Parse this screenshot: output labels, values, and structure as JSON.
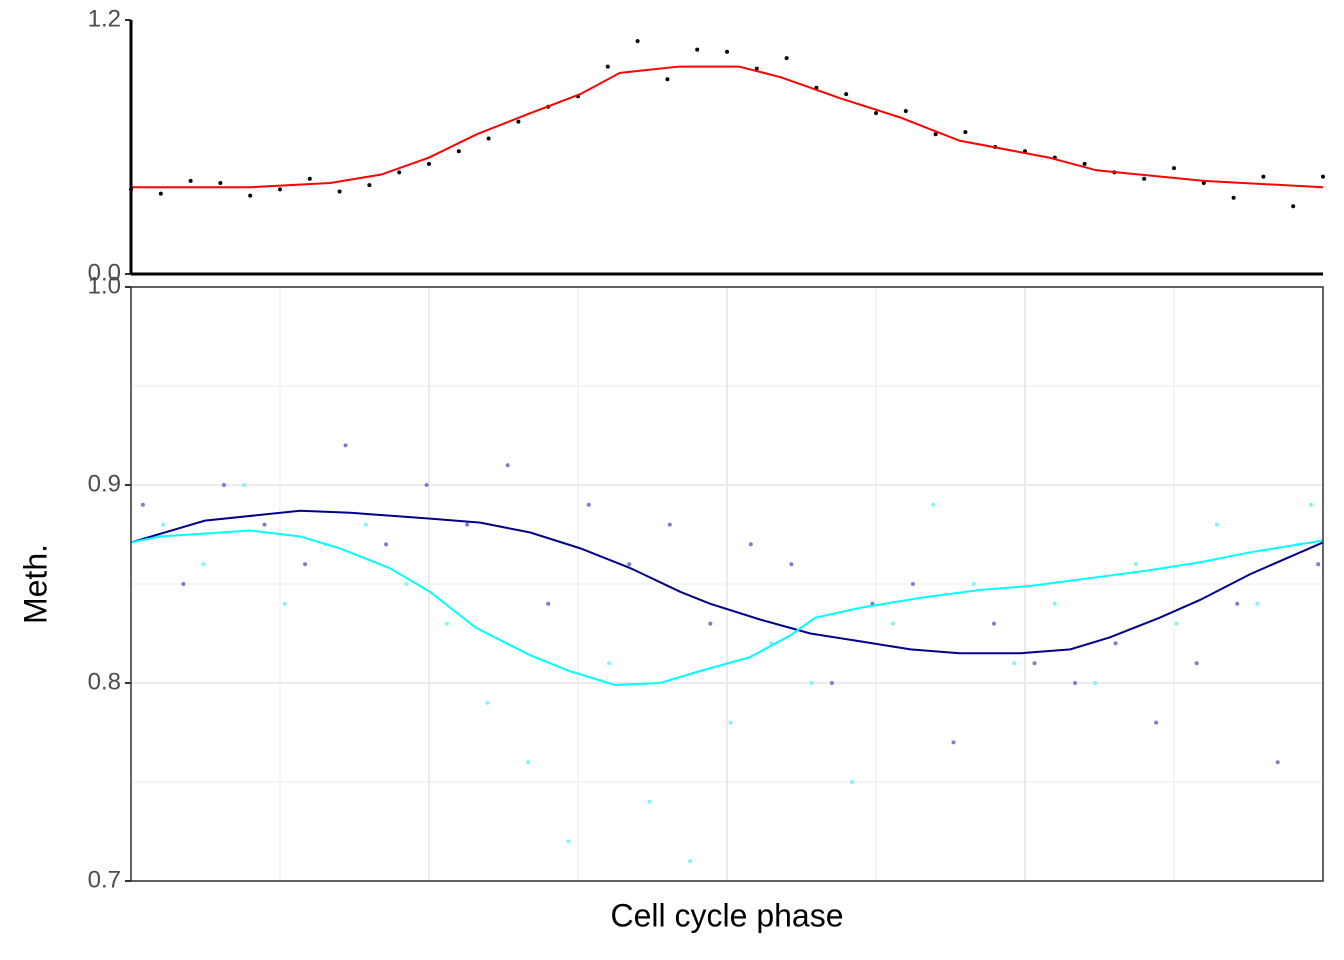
{
  "chart_data": [
    {
      "type": "scatter",
      "xlim": [
        0,
        1
      ],
      "ylim": [
        0,
        1.2
      ],
      "yticks": [
        {
          "value": 0,
          "label": "0.0"
        },
        1.2
      ],
      "grid": false,
      "frame": "axes",
      "series": [
        {
          "color": "#000000",
          "line": false,
          "x": [
            0,
            0.025,
            0.05,
            0.075,
            0.1,
            0.125,
            0.15,
            0.175,
            0.2,
            0.225,
            0.25,
            0.275,
            0.3,
            0.325,
            0.35,
            0.375,
            0.4,
            0.425,
            0.45,
            0.475,
            0.5,
            0.525,
            0.55,
            0.575,
            0.6,
            0.625,
            0.65,
            0.675,
            0.7,
            0.725,
            0.75,
            0.775,
            0.8,
            0.825,
            0.85,
            0.875,
            0.9,
            0.925,
            0.95,
            0.975,
            1
          ],
          "values": [
            0.4,
            0.38,
            0.44,
            0.43,
            0.37,
            0.4,
            0.45,
            0.39,
            0.42,
            0.48,
            0.52,
            0.58,
            0.64,
            0.72,
            0.79,
            0.84,
            0.98,
            1.1,
            0.92,
            1.06,
            1.05,
            0.97,
            1.02,
            0.88,
            0.85,
            0.76,
            0.77,
            0.66,
            0.67,
            0.6,
            0.58,
            0.55,
            0.52,
            0.48,
            0.45,
            0.5,
            0.43,
            0.36,
            0.46,
            0.32,
            0.46
          ]
        },
        {
          "color": "#ff0000",
          "line": true,
          "x": [
            0,
            0.1,
            0.167,
            0.21,
            0.25,
            0.29,
            0.335,
            0.377,
            0.41,
            0.46,
            0.51,
            0.545,
            0.595,
            0.645,
            0.695,
            0.77,
            0.81,
            0.9,
            1
          ],
          "values": [
            0.41,
            0.41,
            0.43,
            0.47,
            0.55,
            0.66,
            0.76,
            0.85,
            0.95,
            0.98,
            0.98,
            0.93,
            0.83,
            0.74,
            0.63,
            0.55,
            0.49,
            0.44,
            0.41
          ]
        }
      ]
    },
    {
      "type": "scatter",
      "xlabel": "Cell cycle phase",
      "ylabel": "Meth.",
      "xlim": [
        0,
        1
      ],
      "ylim": [
        0.7,
        1.0
      ],
      "yticks": [
        0.7,
        0.8,
        0.9,
        {
          "value": 1.0,
          "label": "1.0"
        }
      ],
      "minor_yticks": [
        0.75,
        0.85,
        0.95
      ],
      "xticks": [
        0.25,
        0.5,
        0.75
      ],
      "minor_xticks": [
        0.125,
        0.375,
        0.625,
        0.875
      ],
      "grid": true,
      "frame": "box",
      "series": [
        {
          "color": "#7b7bcf",
          "line": false,
          "x": [
            0.01,
            0.044,
            0.078,
            0.112,
            0.146,
            0.18,
            0.214,
            0.248,
            0.282,
            0.316,
            0.35,
            0.384,
            0.418,
            0.452,
            0.486,
            0.52,
            0.554,
            0.588,
            0.622,
            0.656,
            0.69,
            0.724,
            0.758,
            0.792,
            0.826,
            0.86,
            0.894,
            0.928,
            0.962,
            0.996
          ],
          "values": [
            0.89,
            0.85,
            0.9,
            0.88,
            0.86,
            0.92,
            0.87,
            0.9,
            0.88,
            0.91,
            0.84,
            0.89,
            0.86,
            0.88,
            0.83,
            0.87,
            0.86,
            0.8,
            0.84,
            0.85,
            0.77,
            0.83,
            0.81,
            0.8,
            0.82,
            0.78,
            0.81,
            0.84,
            0.76,
            0.86
          ]
        },
        {
          "color": "#7ff5f5",
          "line": false,
          "x": [
            0.027,
            0.061,
            0.095,
            0.129,
            0.163,
            0.197,
            0.231,
            0.265,
            0.299,
            0.333,
            0.367,
            0.401,
            0.435,
            0.469,
            0.503,
            0.537,
            0.571,
            0.605,
            0.639,
            0.673,
            0.707,
            0.741,
            0.775,
            0.809,
            0.843,
            0.877,
            0.911,
            0.945,
            0.979,
            0.99
          ],
          "values": [
            0.88,
            0.86,
            0.9,
            0.84,
            0.87,
            0.88,
            0.85,
            0.83,
            0.79,
            0.76,
            0.72,
            0.81,
            0.74,
            0.71,
            0.78,
            0.82,
            0.8,
            0.75,
            0.83,
            0.89,
            0.85,
            0.81,
            0.84,
            0.8,
            0.86,
            0.83,
            0.88,
            0.84,
            0.87,
            0.89
          ]
        },
        {
          "color": "#00008b",
          "line": true,
          "x": [
            0,
            0.062,
            0.142,
            0.184,
            0.251,
            0.293,
            0.335,
            0.377,
            0.419,
            0.461,
            0.486,
            0.528,
            0.57,
            0.612,
            0.654,
            0.695,
            0.746,
            0.788,
            0.821,
            0.863,
            0.897,
            0.939,
            0.981,
            1
          ],
          "values": [
            0.871,
            0.882,
            0.887,
            0.886,
            0.883,
            0.881,
            0.876,
            0.868,
            0.858,
            0.846,
            0.84,
            0.832,
            0.825,
            0.821,
            0.817,
            0.815,
            0.815,
            0.817,
            0.823,
            0.833,
            0.842,
            0.855,
            0.866,
            0.871
          ]
        },
        {
          "color": "#00ffff",
          "line": true,
          "x": [
            0,
            0.024,
            0.1,
            0.142,
            0.175,
            0.217,
            0.251,
            0.289,
            0.335,
            0.368,
            0.406,
            0.444,
            0.477,
            0.519,
            0.553,
            0.574,
            0.612,
            0.662,
            0.712,
            0.754,
            0.805,
            0.855,
            0.897,
            0.939,
            1
          ],
          "values": [
            0.871,
            0.874,
            0.877,
            0.874,
            0.868,
            0.858,
            0.846,
            0.828,
            0.814,
            0.806,
            0.799,
            0.8,
            0.806,
            0.813,
            0.824,
            0.833,
            0.838,
            0.843,
            0.847,
            0.849,
            0.853,
            0.857,
            0.861,
            0.866,
            0.872
          ]
        }
      ]
    }
  ]
}
